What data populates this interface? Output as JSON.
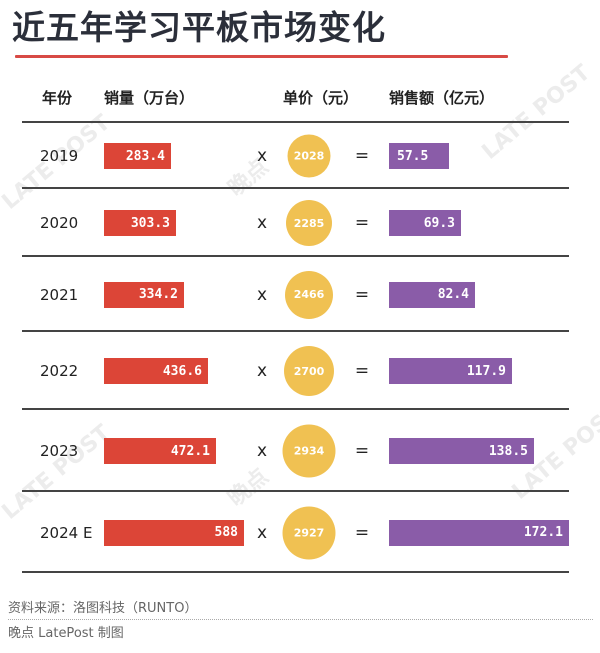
{
  "title": "近五年学习平板市场变化",
  "headers": {
    "year": "年份",
    "volume": "销量（万台）",
    "price": "单价（元）",
    "revenue": "销售额（亿元）"
  },
  "operators": {
    "multiply": "x",
    "equals": "="
  },
  "colors": {
    "volume": "#dc4537",
    "price": "#f0c152",
    "revenue": "#8a5ca8",
    "title_rule": "#d84a45"
  },
  "chart_data": {
    "type": "table",
    "title": "近五年学习平板市场变化",
    "columns": [
      "年份",
      "销量（万台）",
      "单价（元）",
      "销售额（亿元）"
    ],
    "categories": [
      "2019",
      "2020",
      "2021",
      "2022",
      "2023",
      "2024 E"
    ],
    "series": [
      {
        "name": "销量（万台）",
        "values": [
          283.4,
          303.3,
          334.2,
          436.6,
          472.1,
          588
        ]
      },
      {
        "name": "单价（元）",
        "values": [
          2028,
          2285,
          2466,
          2700,
          2934,
          2927
        ]
      },
      {
        "name": "销售额（亿元）",
        "values": [
          57.5,
          69.3,
          82.4,
          117.9,
          138.5,
          172.1
        ]
      }
    ],
    "rows": [
      {
        "year": "2019",
        "volume": "283.4",
        "price": "2028",
        "revenue": "57.5"
      },
      {
        "year": "2020",
        "volume": "303.3",
        "price": "2285",
        "revenue": "69.3"
      },
      {
        "year": "2021",
        "volume": "334.2",
        "price": "2466",
        "revenue": "82.4"
      },
      {
        "year": "2022",
        "volume": "436.6",
        "price": "2700",
        "revenue": "117.9"
      },
      {
        "year": "2023",
        "volume": "472.1",
        "price": "2934",
        "revenue": "138.5"
      },
      {
        "year": "2024 E",
        "volume": "588",
        "price": "2927",
        "revenue": "172.1"
      }
    ]
  },
  "footer": {
    "source": "资料来源：洛图科技（RUNTO）",
    "credit": "晚点 LatePost 制图"
  },
  "watermark": {
    "text": "晚点",
    "brand": "LATE POST"
  }
}
